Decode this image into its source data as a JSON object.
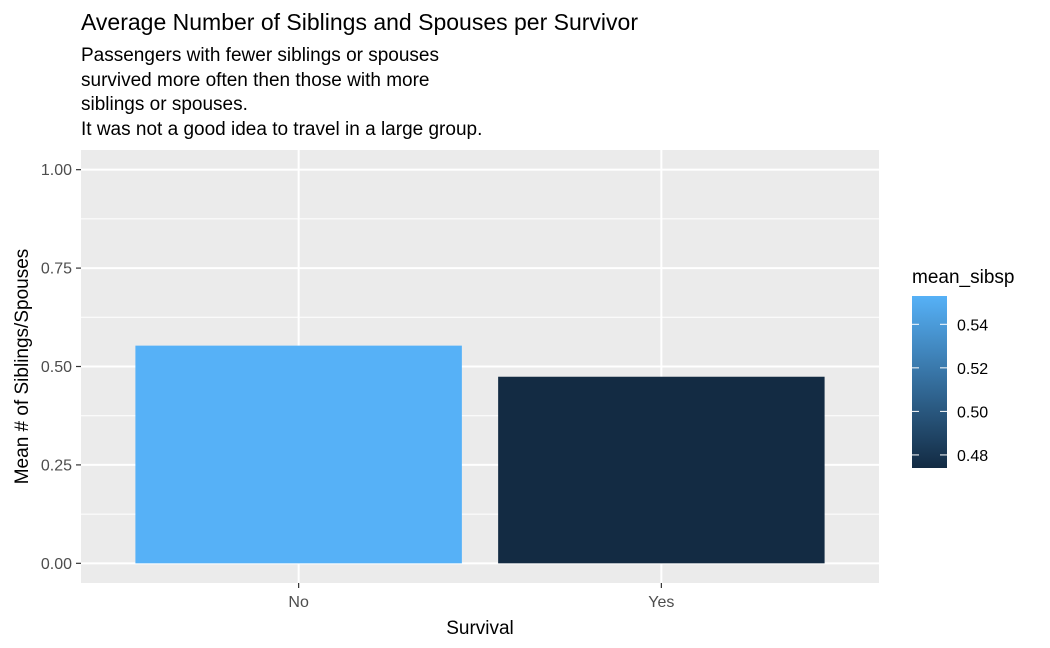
{
  "chart_data": {
    "type": "bar",
    "title": "Average Number of Siblings and Spouses per Survivor",
    "subtitle_lines": [
      "Passengers with fewer siblings or spouses",
      "survived more often then those with more",
      "siblings or spouses.",
      "It was not a good idea to travel in a large group."
    ],
    "xlabel": "Survival",
    "ylabel": "Mean # of Siblings/Spouses",
    "categories": [
      "No",
      "Yes"
    ],
    "values": [
      0.553,
      0.474
    ],
    "ylim": [
      0,
      1
    ],
    "yticks": [
      "0.00",
      "0.25",
      "0.50",
      "0.75",
      "1.00"
    ],
    "grid": true,
    "legend": {
      "title": "mean_sibsp",
      "type": "colorbar",
      "position": "right",
      "range": [
        0.474,
        0.553
      ],
      "breaks": [
        {
          "value": 0.48,
          "label": "0.48"
        },
        {
          "value": 0.5,
          "label": "0.50"
        },
        {
          "value": 0.52,
          "label": "0.52"
        },
        {
          "value": 0.54,
          "label": "0.54"
        }
      ],
      "low_color": "#132B43",
      "high_color": "#56B1F7"
    },
    "panel_color": "#EBEBEB",
    "grid_color": "#FFFFFF"
  }
}
